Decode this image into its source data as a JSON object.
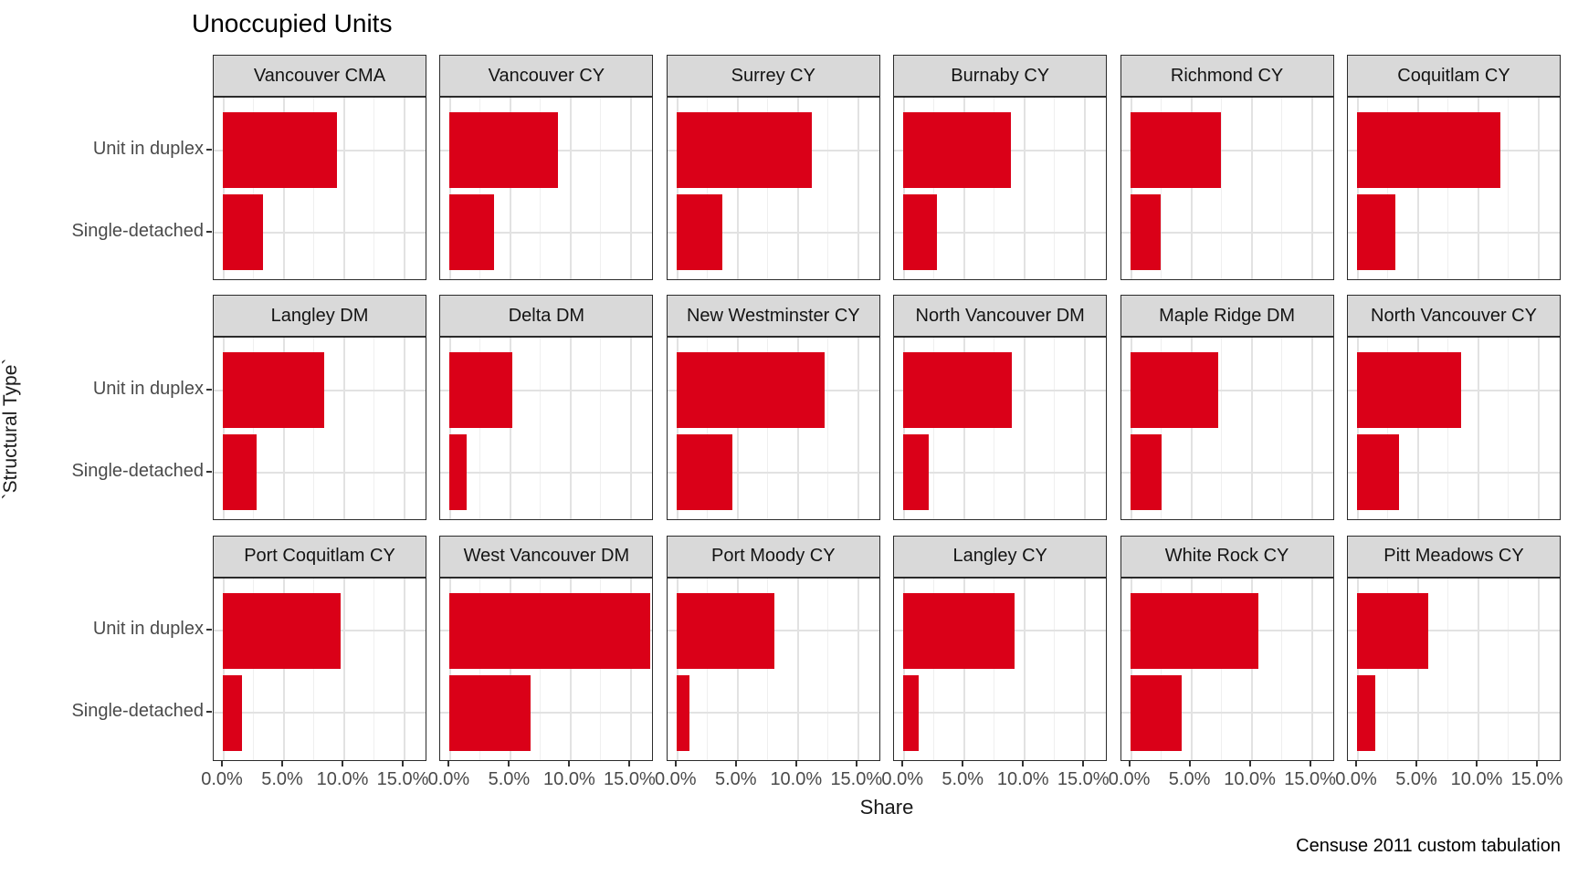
{
  "title": "Unoccupied Units",
  "caption": "Censuse 2011 custom tabulation",
  "colors": {
    "bar": "#da0018",
    "strip_background": "#d9d9d9",
    "panel_border": "#2b2b2b",
    "grid_major": "#e2e2e2",
    "grid_minor": "#efefef",
    "axis_text": "#4a4a4a"
  },
  "chart_data": {
    "type": "bar",
    "orientation": "horizontal",
    "title": "Unoccupied Units",
    "xlabel": "Share",
    "ylabel": "`Structural Type`",
    "caption": "Censuse 2011 custom tabulation",
    "categories": [
      "Unit in duplex",
      "Single-detached"
    ],
    "x_tick_labels": [
      "0.0%",
      "5.0%",
      "10.0%",
      "15.0%"
    ],
    "x_tick_values": [
      0,
      5,
      10,
      15
    ],
    "x_minor_values": [
      2.5,
      7.5,
      12.5
    ],
    "xlim": [
      -0.8,
      17.0
    ],
    "grid": true,
    "legend": "none",
    "facet_layout": {
      "rows": 3,
      "cols": 6
    },
    "facets": [
      {
        "name": "Vancouver CMA",
        "values": [
          9.5,
          3.3
        ]
      },
      {
        "name": "Vancouver CY",
        "values": [
          9.0,
          3.7
        ]
      },
      {
        "name": "Surrey CY",
        "values": [
          11.2,
          3.8
        ]
      },
      {
        "name": "Burnaby CY",
        "values": [
          8.9,
          2.8
        ]
      },
      {
        "name": "Richmond CY",
        "values": [
          7.5,
          2.5
        ]
      },
      {
        "name": "Coquitlam CY",
        "values": [
          11.9,
          3.2
        ]
      },
      {
        "name": "Langley DM",
        "values": [
          8.4,
          2.8
        ]
      },
      {
        "name": "Delta DM",
        "values": [
          5.2,
          1.4
        ]
      },
      {
        "name": "New Westminster CY",
        "values": [
          12.3,
          4.6
        ]
      },
      {
        "name": "North Vancouver DM",
        "values": [
          9.0,
          2.1
        ]
      },
      {
        "name": "Maple Ridge DM",
        "values": [
          7.3,
          2.6
        ]
      },
      {
        "name": "North Vancouver CY",
        "values": [
          8.6,
          3.5
        ]
      },
      {
        "name": "Port Coquitlam CY",
        "values": [
          9.8,
          1.6
        ]
      },
      {
        "name": "West Vancouver DM",
        "values": [
          16.6,
          6.7
        ]
      },
      {
        "name": "Port Moody CY",
        "values": [
          8.1,
          1.1
        ]
      },
      {
        "name": "Langley CY",
        "values": [
          9.2,
          1.3
        ]
      },
      {
        "name": "White Rock CY",
        "values": [
          10.6,
          4.3
        ]
      },
      {
        "name": "Pitt Meadows CY",
        "values": [
          5.9,
          1.5
        ]
      }
    ]
  }
}
